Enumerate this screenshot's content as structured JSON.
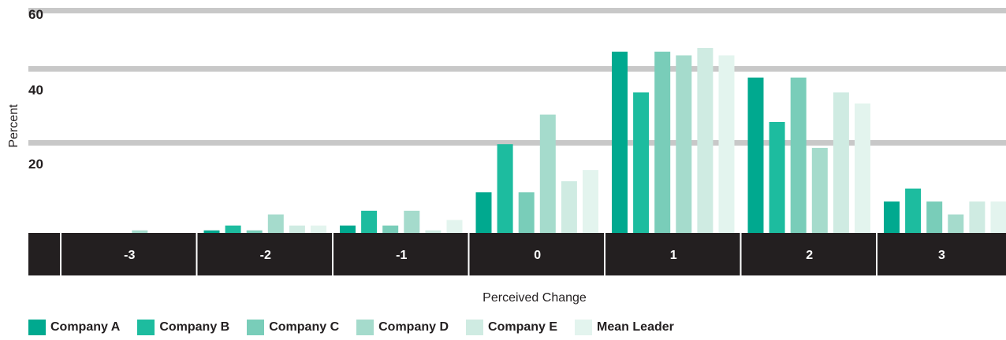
{
  "chart_data": {
    "type": "bar",
    "categories": [
      "-3",
      "-2",
      "-1",
      "0",
      "1",
      "2",
      "3"
    ],
    "series": [
      {
        "name": "Company A",
        "color": "#00a98f",
        "values": [
          0,
          0.7,
          2,
          11,
          49,
          42,
          8.5
        ]
      },
      {
        "name": "Company B",
        "color": "#1dbc9f",
        "values": [
          0,
          2,
          6,
          24,
          38,
          30,
          12
        ]
      },
      {
        "name": "Company C",
        "color": "#79cdb9",
        "values": [
          0,
          0.7,
          2,
          11,
          49,
          42,
          8.5
        ]
      },
      {
        "name": "Company D",
        "color": "#a5dbcc",
        "values": [
          0.7,
          5,
          6,
          32,
          48,
          23,
          5
        ]
      },
      {
        "name": "Company E",
        "color": "#cfebe2",
        "values": [
          0,
          2,
          0.7,
          14,
          50,
          38,
          8.5
        ]
      },
      {
        "name": "Mean Leader",
        "color": "#e3f4ee",
        "values": [
          0,
          2,
          3.5,
          17,
          48,
          35,
          8.5
        ]
      }
    ],
    "yticks": [
      "20",
      "40",
      "60"
    ],
    "ylim": [
      0,
      60
    ],
    "xlabel": "Perceived Change",
    "ylabel": "Percent",
    "grid": true,
    "legend_position": "bottom"
  }
}
